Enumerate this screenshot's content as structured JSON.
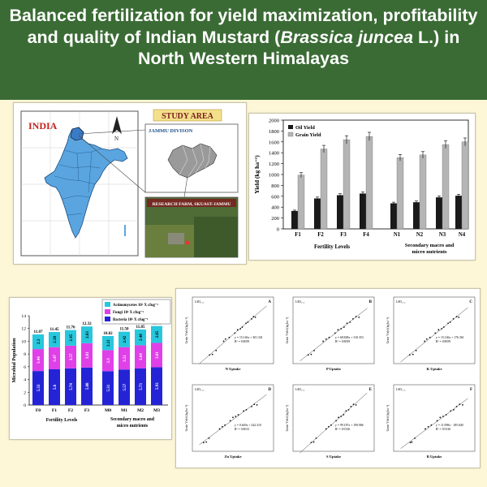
{
  "title": {
    "part1": "Balanced fertilization for yield maximization, profitability and quality of Indian Mustard (",
    "italic": "Brassica juncea",
    "part2": " L.) in North Western Himalayas"
  },
  "map": {
    "country_label": "INDIA",
    "study_area_label": "STUDY AREA",
    "division_label": "JAMMU DIVISON",
    "farm_label": "RESEARCH FARM, SKUAST-JAMMU",
    "colors": {
      "country_fill": "#5aa5e0",
      "study_label_bg": "#f3e08a",
      "photo_green": "#4f6b36"
    }
  },
  "yield_chart": {
    "type": "bar",
    "ylabel": "Yield (kg ha⁻¹)",
    "ylim": [
      0,
      2000
    ],
    "yticks": [
      "0",
      "200",
      "400",
      "600",
      "800",
      "1000",
      "1200",
      "1400",
      "1600",
      "1800",
      "2000"
    ],
    "categories": [
      "F1",
      "F2",
      "F3",
      "F4",
      "N1",
      "N2",
      "N3",
      "N4"
    ],
    "series": [
      {
        "name": "Oil Yield",
        "values": [
          330,
          560,
          620,
          650,
          470,
          490,
          580,
          610
        ],
        "color": "#1a1a1a"
      },
      {
        "name": "Grain Yield",
        "values": [
          990,
          1470,
          1640,
          1700,
          1310,
          1360,
          1550,
          1600
        ],
        "color": "#b5b5b5"
      }
    ],
    "group_labels": [
      "Fertility Levels",
      "Secondary macro and micro nutrients"
    ],
    "legend": [
      "Oil Yield",
      "Grain Yield"
    ]
  },
  "microbe_chart": {
    "type": "bar",
    "ylabel": "Microbial Population",
    "ylim": [
      0,
      14
    ],
    "yticks": [
      "0",
      "2",
      "4",
      "6",
      "8",
      "10",
      "12",
      "14"
    ],
    "categories": [
      "F0",
      "F1",
      "F2",
      "F3",
      "M0",
      "M1",
      "M2",
      "M3"
    ],
    "series": [
      {
        "name": "Bacteria 10⁶ X cfug⁻¹",
        "values": [
          5.33,
          5.6,
          5.74,
          5.88,
          5.31,
          5.57,
          5.73,
          5.93
        ],
        "color": "#2424d6"
      },
      {
        "name": "Fungi 10³ X cfug⁻¹",
        "values": [
          3.44,
          3.47,
          3.57,
          3.81,
          3.3,
          3.51,
          3.64,
          3.81
        ],
        "color": "#e040e8"
      },
      {
        "name": "Actinomycetes 10⁵ X cfug⁻¹",
        "values": [
          2.3,
          2.38,
          2.45,
          2.63,
          2.21,
          2.42,
          2.48,
          2.65
        ],
        "color": "#27c7dd"
      }
    ],
    "totals": [
      "11.07",
      "11.45",
      "11.76",
      "12.32",
      "10.82",
      "11.50",
      "11.85",
      "12.41"
    ],
    "seg_labels": [
      [
        "5.33",
        "3.44",
        "2.3"
      ],
      [
        "5.6",
        "3.47",
        "2.38"
      ],
      [
        "5.74",
        "3.57",
        "2.45"
      ],
      [
        "5.88",
        "3.81",
        "2.63"
      ],
      [
        "5.31",
        "3.3",
        "2.21"
      ],
      [
        "5.57",
        "3.51",
        "2.42"
      ],
      [
        "5.73",
        "3.64",
        "2.48"
      ],
      [
        "5.93",
        "3.81",
        "2.65"
      ]
    ],
    "group_labels": [
      "Fertility Levels",
      "Secondary macro and micro nutrients"
    ]
  },
  "regressions": {
    "type": "scatter",
    "panels": [
      {
        "letter": "A",
        "xlabel": "N Uptake",
        "eq": "y = 15.146x + 301.341",
        "r2": "R² = 0.8059",
        "xlim": [
          30,
          110
        ],
        "ylim": [
          900,
          2000
        ],
        "points": [
          [
            45,
            1000
          ],
          [
            48,
            1010
          ],
          [
            52,
            1080
          ],
          [
            60,
            1250
          ],
          [
            62,
            1290
          ],
          [
            66,
            1320
          ],
          [
            72,
            1400
          ],
          [
            75,
            1460
          ],
          [
            78,
            1480
          ],
          [
            80,
            1510
          ],
          [
            84,
            1580
          ],
          [
            86,
            1600
          ],
          [
            90,
            1660
          ],
          [
            92,
            1700
          ],
          [
            94,
            1690
          ]
        ]
      },
      {
        "letter": "B",
        "xlabel": "P Uptake",
        "eq": "y = 68.848x + 310.353",
        "r2": "R² = 0.8059",
        "xlim": [
          5,
          30
        ],
        "ylim": [
          900,
          2000
        ],
        "points": [
          [
            9,
            1000
          ],
          [
            10,
            1010
          ],
          [
            11,
            1080
          ],
          [
            14,
            1250
          ],
          [
            15,
            1290
          ],
          [
            16,
            1320
          ],
          [
            18,
            1400
          ],
          [
            19,
            1460
          ],
          [
            20,
            1480
          ],
          [
            21,
            1510
          ],
          [
            22,
            1580
          ],
          [
            23,
            1600
          ],
          [
            24,
            1660
          ],
          [
            25,
            1700
          ],
          [
            26,
            1690
          ]
        ]
      },
      {
        "letter": "C",
        "xlabel": "K Uptake",
        "eq": "y = 15.146x + 176.361",
        "r2": "R² = 0.8059",
        "xlim": [
          40,
          110
        ],
        "ylim": [
          900,
          2000
        ],
        "points": [
          [
            52,
            1000
          ],
          [
            55,
            1010
          ],
          [
            58,
            1080
          ],
          [
            66,
            1250
          ],
          [
            68,
            1290
          ],
          [
            71,
            1320
          ],
          [
            76,
            1400
          ],
          [
            79,
            1460
          ],
          [
            82,
            1480
          ],
          [
            84,
            1510
          ],
          [
            88,
            1580
          ],
          [
            90,
            1600
          ],
          [
            93,
            1660
          ],
          [
            96,
            1700
          ],
          [
            98,
            1690
          ]
        ]
      },
      {
        "letter": "D",
        "xlabel": "Zn Uptake",
        "eq": "y = 0.649x + 242.310",
        "r2": "R² = 0.8013",
        "xlim": [
          1200,
          2600
        ],
        "ylim": [
          900,
          2000
        ],
        "points": [
          [
            1350,
            1000
          ],
          [
            1400,
            1010
          ],
          [
            1450,
            1080
          ],
          [
            1650,
            1250
          ],
          [
            1700,
            1290
          ],
          [
            1750,
            1320
          ],
          [
            1850,
            1400
          ],
          [
            1900,
            1460
          ],
          [
            1950,
            1480
          ],
          [
            2000,
            1510
          ],
          [
            2100,
            1580
          ],
          [
            2150,
            1600
          ],
          [
            2250,
            1660
          ],
          [
            2300,
            1700
          ],
          [
            2350,
            1690
          ]
        ]
      },
      {
        "letter": "E",
        "xlabel": "S Uptake",
        "eq": "y = 99.187x + 199.986",
        "r2": "R² = 0.9136",
        "xlim": [
          5,
          20
        ],
        "ylim": [
          900,
          2000
        ],
        "points": [
          [
            8,
            1000
          ],
          [
            8.5,
            1010
          ],
          [
            9,
            1080
          ],
          [
            11,
            1250
          ],
          [
            11.5,
            1290
          ],
          [
            12,
            1320
          ],
          [
            13,
            1400
          ],
          [
            13.5,
            1460
          ],
          [
            14,
            1480
          ],
          [
            14.5,
            1510
          ],
          [
            15,
            1580
          ],
          [
            15.5,
            1600
          ],
          [
            16,
            1660
          ],
          [
            16.5,
            1700
          ],
          [
            17,
            1690
          ]
        ]
      },
      {
        "letter": "F",
        "xlabel": "B Uptake",
        "eq": "y = 11.998x - 185.840",
        "r2": "R² = 0.9130",
        "xlim": [
          80,
          180
        ],
        "ylim": [
          900,
          2000
        ],
        "points": [
          [
            98,
            1000
          ],
          [
            100,
            1010
          ],
          [
            104,
            1080
          ],
          [
            118,
            1250
          ],
          [
            122,
            1290
          ],
          [
            126,
            1320
          ],
          [
            134,
            1400
          ],
          [
            138,
            1460
          ],
          [
            142,
            1480
          ],
          [
            146,
            1510
          ],
          [
            152,
            1580
          ],
          [
            156,
            1600
          ],
          [
            160,
            1660
          ],
          [
            164,
            1700
          ],
          [
            168,
            1690
          ]
        ]
      }
    ],
    "ylabel": "Grain Yield (kg ha⁻¹)",
    "corner_label": "LSD₀.₀₅"
  }
}
